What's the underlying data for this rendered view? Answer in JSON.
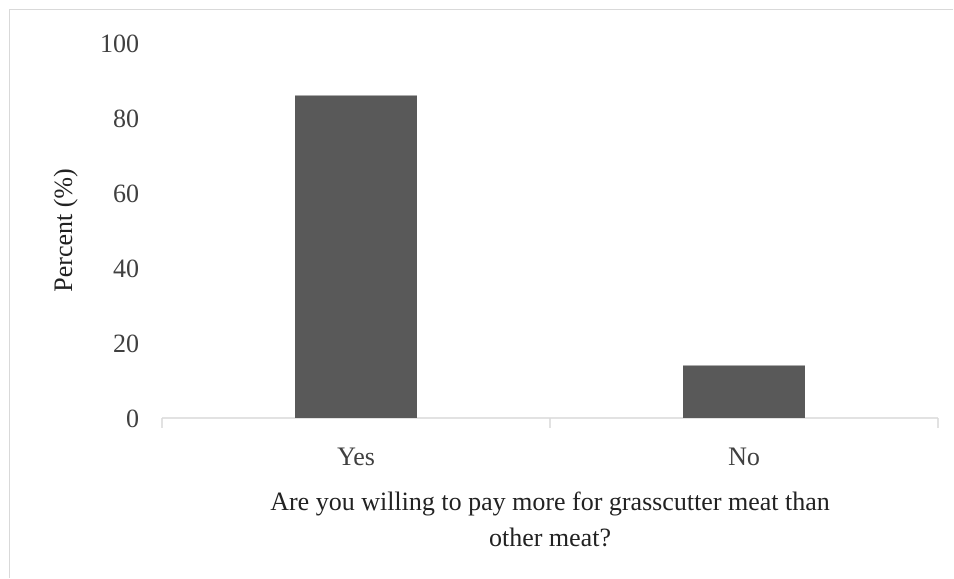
{
  "chart_data": {
    "type": "bar",
    "categories": [
      "Yes",
      "No"
    ],
    "values": [
      86,
      14
    ],
    "xlabel_lines": [
      "Are you willing to pay more for grasscutter meat than",
      "other meat?"
    ],
    "ylabel": "Percent (%)",
    "ylim": [
      0,
      100
    ],
    "yticks": [
      0,
      20,
      40,
      60,
      80,
      100
    ],
    "grid": false,
    "legend": "none",
    "bar_color": "#595959",
    "axis_color": "#d9d9d9"
  }
}
